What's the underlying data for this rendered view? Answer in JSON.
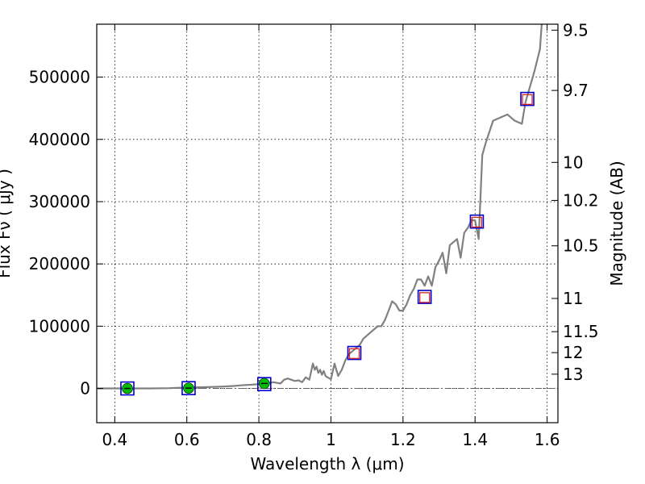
{
  "chart_data": {
    "type": "line",
    "title": "",
    "xlabel": "Wavelength  λ (μm)",
    "ylabel": "Flux  Fν  ( μJy )",
    "y2label": "Magnitude (AB)",
    "xlim": [
      0.35,
      1.63
    ],
    "ylim": [
      -55000,
      585000
    ],
    "grid": true,
    "x_ticks": [
      {
        "v": 0.4,
        "label": "0.4"
      },
      {
        "v": 0.6,
        "label": "0.6"
      },
      {
        "v": 0.8,
        "label": "0.8"
      },
      {
        "v": 1.0,
        "label": "1"
      },
      {
        "v": 1.2,
        "label": "1.2"
      },
      {
        "v": 1.4,
        "label": "1.4"
      },
      {
        "v": 1.6,
        "label": "1.6"
      }
    ],
    "y_ticks": [
      {
        "v": 0,
        "label": "0"
      },
      {
        "v": 100000,
        "label": "100000"
      },
      {
        "v": 200000,
        "label": "200000"
      },
      {
        "v": 300000,
        "label": "300000"
      },
      {
        "v": 400000,
        "label": "400000"
      },
      {
        "v": 500000,
        "label": "500000"
      }
    ],
    "y2_ticks": [
      {
        "v": 9.5,
        "label": "9.5"
      },
      {
        "v": 9.7,
        "label": "9.7"
      },
      {
        "v": 10,
        "label": "10"
      },
      {
        "v": 10.2,
        "label": "10.2"
      },
      {
        "v": 10.5,
        "label": "10.5"
      },
      {
        "v": 11,
        "label": "11"
      },
      {
        "v": 11.5,
        "label": "11.5"
      },
      {
        "v": 12,
        "label": "12"
      },
      {
        "v": 13,
        "label": "13"
      }
    ],
    "series": [
      {
        "kind": "spectrum",
        "color": "#808080",
        "x": [
          0.35,
          0.4,
          0.45,
          0.5,
          0.55,
          0.6,
          0.65,
          0.7,
          0.73,
          0.75,
          0.78,
          0.8,
          0.82,
          0.84,
          0.86,
          0.87,
          0.88,
          0.9,
          0.91,
          0.92,
          0.93,
          0.94,
          0.95,
          0.955,
          0.96,
          0.965,
          0.97,
          0.975,
          0.98,
          0.985,
          0.99,
          1.0,
          1.01,
          1.02,
          1.03,
          1.04,
          1.05,
          1.06,
          1.07,
          1.08,
          1.09,
          1.1,
          1.11,
          1.12,
          1.13,
          1.14,
          1.15,
          1.16,
          1.17,
          1.18,
          1.19,
          1.2,
          1.21,
          1.22,
          1.23,
          1.24,
          1.25,
          1.26,
          1.27,
          1.28,
          1.29,
          1.3,
          1.31,
          1.32,
          1.33,
          1.34,
          1.35,
          1.36,
          1.37,
          1.38,
          1.39,
          1.4,
          1.41,
          1.42,
          1.43,
          1.45,
          1.47,
          1.49,
          1.5,
          1.51,
          1.53,
          1.54,
          1.55,
          1.565,
          1.58,
          1.585
        ],
        "y": [
          0,
          0,
          0,
          0,
          500,
          1500,
          2000,
          3000,
          4000,
          5000,
          6000,
          7000,
          8000,
          10000,
          8000,
          14000,
          16000,
          12000,
          13000,
          10000,
          18000,
          14000,
          40000,
          30000,
          35000,
          25000,
          30000,
          22000,
          28000,
          20000,
          18000,
          15000,
          40000,
          20000,
          30000,
          45000,
          55000,
          60000,
          65000,
          70000,
          80000,
          85000,
          90000,
          95000,
          100000,
          100000,
          110000,
          125000,
          140000,
          135000,
          125000,
          125000,
          135000,
          150000,
          160000,
          175000,
          175000,
          165000,
          180000,
          165000,
          195000,
          205000,
          218000,
          185000,
          230000,
          235000,
          240000,
          210000,
          250000,
          258000,
          270000,
          270000,
          240000,
          375000,
          395000,
          430000,
          435000,
          440000,
          435000,
          430000,
          425000,
          460000,
          480000,
          510000,
          545000,
          585000
        ]
      },
      {
        "kind": "observed",
        "marker": "circle",
        "color": "#00bb00",
        "x": [
          0.435,
          0.605,
          0.815
        ],
        "y": [
          0,
          500,
          8000
        ]
      },
      {
        "kind": "model",
        "marker": "square",
        "color": "#0000cc",
        "x": [
          0.435,
          0.605,
          0.815,
          1.065,
          1.26,
          1.405,
          1.545
        ],
        "y": [
          0,
          500,
          7000,
          57000,
          147000,
          268000,
          465000
        ]
      },
      {
        "kind": "upper-limit",
        "marker": "square",
        "color": "#dd2222",
        "x": [
          1.065,
          1.26,
          1.405,
          1.545
        ],
        "y": [
          56000,
          146000,
          267000,
          464000
        ]
      }
    ]
  }
}
